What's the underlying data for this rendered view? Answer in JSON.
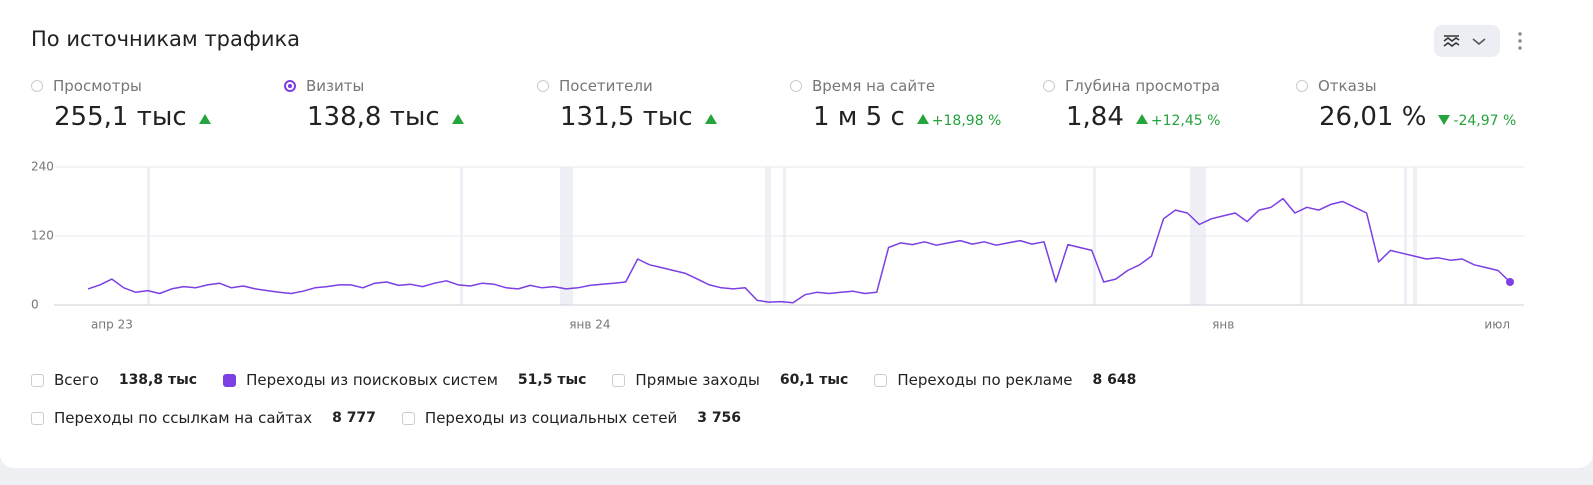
{
  "header": {
    "title": "По источникам трафика"
  },
  "metrics": [
    {
      "label": "Просмотры",
      "value": "255,1 тыс",
      "trend": "up",
      "selected": false
    },
    {
      "label": "Визиты",
      "value": "138,8 тыс",
      "trend": "up",
      "selected": true
    },
    {
      "label": "Посетители",
      "value": "131,5 тыс",
      "trend": "up",
      "selected": false
    },
    {
      "label": "Время на сайте",
      "value": "1 м 5 с",
      "trend": "up",
      "delta": "+18,98 %",
      "selected": false
    },
    {
      "label": "Глубина просмотра",
      "value": "1,84",
      "trend": "up",
      "delta": "+12,45 %",
      "selected": false
    },
    {
      "label": "Отказы",
      "value": "26,01 %",
      "trend": "down",
      "delta": "-24,97 %",
      "selected": false
    }
  ],
  "chart_data": {
    "type": "line",
    "categories": [
      null,
      null,
      "апр 23",
      null,
      null,
      null,
      null,
      null,
      null,
      null,
      null,
      null,
      null,
      null,
      null,
      null,
      null,
      null,
      null,
      null,
      null,
      null,
      null,
      null,
      null,
      null,
      null,
      null,
      null,
      null,
      null,
      null,
      null,
      null,
      null,
      null,
      null,
      null,
      null,
      null,
      null,
      null,
      "янв 24",
      null,
      null,
      null,
      null,
      null,
      null,
      null,
      null,
      null,
      null,
      null,
      null,
      null,
      null,
      null,
      null,
      null,
      null,
      null,
      null,
      null,
      null,
      null,
      null,
      null,
      null,
      null,
      null,
      null,
      null,
      null,
      null,
      null,
      null,
      null,
      null,
      null,
      null,
      null,
      null,
      null,
      null,
      null,
      null,
      null,
      null,
      null,
      null,
      null,
      null,
      null,
      null,
      "янв",
      null,
      null,
      null,
      null,
      null,
      null,
      null,
      null,
      null,
      null,
      null,
      null,
      null,
      null,
      null,
      null,
      null,
      null,
      null,
      null,
      null,
      null,
      null,
      "июл"
    ],
    "series": [
      {
        "name": "Переходы из поисковых систем",
        "color": "#7b3fe4",
        "values": [
          28,
          35,
          45,
          30,
          22,
          25,
          20,
          28,
          32,
          30,
          35,
          38,
          30,
          33,
          28,
          25,
          22,
          20,
          24,
          30,
          32,
          35,
          35,
          30,
          38,
          40,
          34,
          36,
          32,
          38,
          42,
          35,
          33,
          38,
          36,
          30,
          28,
          34,
          30,
          32,
          28,
          30,
          34,
          36,
          38,
          40,
          80,
          70,
          65,
          60,
          55,
          45,
          35,
          30,
          28,
          30,
          8,
          5,
          6,
          4,
          18,
          22,
          20,
          22,
          24,
          20,
          22,
          100,
          108,
          105,
          110,
          104,
          108,
          112,
          106,
          110,
          104,
          108,
          112,
          106,
          110,
          40,
          105,
          100,
          95,
          40,
          45,
          60,
          70,
          85,
          150,
          165,
          160,
          140,
          150,
          155,
          160,
          145,
          165,
          170,
          185,
          160,
          170,
          165,
          175,
          180,
          170,
          160,
          75,
          95,
          90,
          85,
          80,
          82,
          78,
          80,
          70,
          65,
          60,
          40
        ]
      }
    ],
    "ylim": [
      0,
      240
    ],
    "yticks": [
      0,
      120,
      240
    ],
    "grid": true
  },
  "sources": [
    {
      "label": "Всего",
      "value": "138,8 тыс",
      "checked": false
    },
    {
      "label": "Переходы из поисковых систем",
      "value": "51,5 тыс",
      "checked": true
    },
    {
      "label": "Прямые заходы",
      "value": "60,1 тыс",
      "checked": false
    },
    {
      "label": "Переходы по рекламе",
      "value": "8 648",
      "checked": false
    },
    {
      "label": "Переходы по ссылкам на сайтах",
      "value": "8 777",
      "checked": false
    },
    {
      "label": "Переходы из социальных сетей",
      "value": "3 756",
      "checked": false
    }
  ]
}
